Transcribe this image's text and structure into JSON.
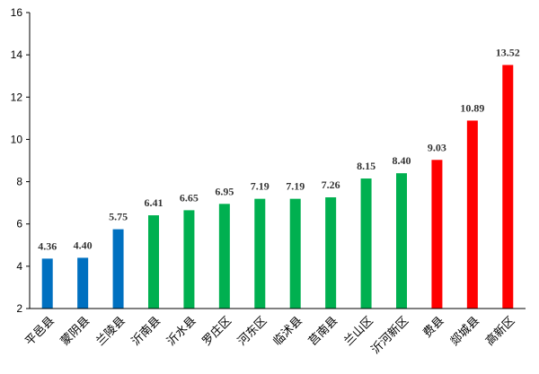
{
  "chart_data": {
    "type": "bar",
    "title": "",
    "xlabel": "",
    "ylabel": "",
    "ylim": [
      2,
      16
    ],
    "yticks": [
      2,
      4,
      6,
      8,
      10,
      12,
      14,
      16
    ],
    "grid": false,
    "legend": "none",
    "categories": [
      "平邑县",
      "蒙阴县",
      "兰陵县",
      "沂南县",
      "沂水县",
      "罗庄区",
      "河东区",
      "临沭县",
      "莒南县",
      "兰山区",
      "沂河新区",
      "费县",
      "郯城县",
      "高新区"
    ],
    "values": [
      4.36,
      4.4,
      5.75,
      6.41,
      6.65,
      6.95,
      7.19,
      7.19,
      7.26,
      8.15,
      8.4,
      9.03,
      10.89,
      13.52
    ],
    "labels": [
      "4.36",
      "4.40",
      "5.75",
      "6.41",
      "6.65",
      "6.95",
      "7.19",
      "7.19",
      "7.26",
      "8.15",
      "8.40",
      "9.03",
      "10.89",
      "13.52"
    ],
    "bar_colors": [
      "#0070C0",
      "#0070C0",
      "#0070C0",
      "#00B050",
      "#00B050",
      "#00B050",
      "#00B050",
      "#00B050",
      "#00B050",
      "#00B050",
      "#00B050",
      "#FF0000",
      "#FF0000",
      "#FF0000"
    ]
  }
}
